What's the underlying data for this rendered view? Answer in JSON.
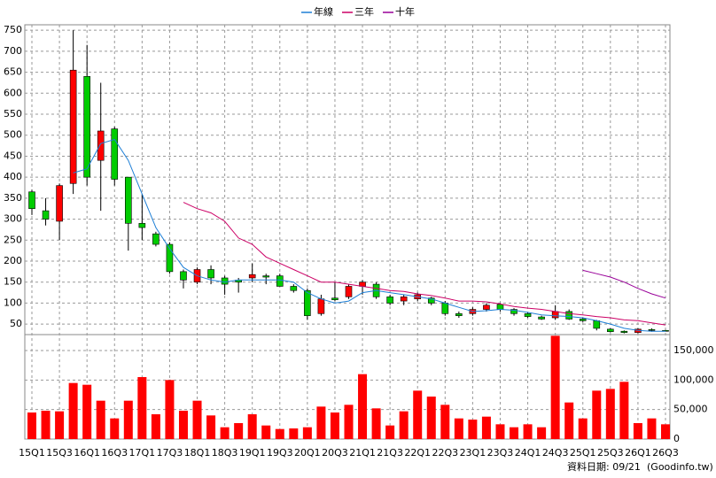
{
  "chart_data": {
    "type": "candlestick",
    "categories": [
      "15Q1",
      null,
      "15Q3",
      null,
      "16Q1",
      null,
      "16Q3",
      null,
      "17Q1",
      null,
      "17Q3",
      null,
      "18Q1",
      null,
      "18Q3",
      null,
      "19Q1",
      null,
      "19Q3",
      null,
      "20Q1",
      null,
      "20Q3",
      null,
      "21Q1",
      null,
      "21Q3",
      null,
      "22Q1",
      null,
      "22Q3",
      null,
      "23Q1",
      null,
      "23Q3",
      null,
      "24Q1",
      null,
      "24Q3",
      null,
      "25Q1",
      null,
      "25Q3",
      null,
      "26Q1",
      null,
      "26Q3"
    ],
    "ohlc": {
      "up_color": "#ff0000",
      "down_color": "#00cc00",
      "open": [
        365,
        320,
        295,
        385,
        640,
        440,
        515,
        400,
        290,
        265,
        240,
        175,
        150,
        180,
        160,
        155,
        160,
        165,
        165,
        140,
        130,
        75,
        112,
        115,
        140,
        145,
        115,
        105,
        110,
        112,
        100,
        75,
        75,
        85,
        97,
        85,
        75,
        67,
        65,
        80,
        62,
        58,
        38,
        33,
        30,
        37,
        35
      ],
      "high": [
        370,
        350,
        385,
        750,
        715,
        625,
        520,
        400,
        360,
        270,
        245,
        180,
        185,
        190,
        165,
        160,
        195,
        170,
        170,
        145,
        135,
        120,
        150,
        145,
        155,
        150,
        120,
        120,
        125,
        115,
        105,
        80,
        90,
        100,
        100,
        88,
        78,
        70,
        95,
        85,
        65,
        60,
        40,
        35,
        40,
        40,
        36
      ],
      "low": [
        310,
        285,
        250,
        360,
        380,
        320,
        380,
        225,
        250,
        235,
        170,
        135,
        145,
        145,
        120,
        125,
        150,
        145,
        140,
        125,
        60,
        70,
        105,
        110,
        120,
        110,
        95,
        95,
        105,
        95,
        70,
        65,
        70,
        80,
        80,
        70,
        65,
        60,
        60,
        60,
        55,
        35,
        30,
        28,
        28,
        32,
        33
      ],
      "close": [
        325,
        300,
        380,
        655,
        400,
        510,
        395,
        290,
        280,
        240,
        175,
        155,
        180,
        160,
        145,
        150,
        168,
        162,
        140,
        130,
        70,
        110,
        108,
        140,
        150,
        115,
        100,
        115,
        120,
        100,
        75,
        70,
        85,
        95,
        85,
        75,
        68,
        62,
        80,
        62,
        58,
        40,
        32,
        30,
        38,
        35,
        34
      ]
    },
    "volume": {
      "color": "#ff0000",
      "axis": "y2",
      "values": [
        45000,
        48000,
        47000,
        95000,
        92000,
        65000,
        35000,
        65000,
        105000,
        42000,
        100000,
        48000,
        65000,
        40000,
        20000,
        27000,
        42000,
        23000,
        17000,
        18000,
        20000,
        55000,
        45000,
        58000,
        110000,
        52000,
        23000,
        47000,
        82000,
        72000,
        58000,
        35000,
        33000,
        38000,
        25000,
        20000,
        25000,
        20000,
        175000,
        62000,
        35000,
        82000,
        85000,
        97000,
        27000,
        35000,
        25000
      ]
    },
    "series": [
      {
        "name": "年線",
        "color": "#1e7fd6",
        "values": [
          null,
          null,
          null,
          410,
          420,
          480,
          490,
          440,
          360,
          280,
          230,
          185,
          165,
          155,
          150,
          155,
          155,
          155,
          155,
          150,
          125,
          110,
          100,
          105,
          125,
          130,
          125,
          120,
          115,
          110,
          100,
          90,
          80,
          82,
          85,
          83,
          78,
          72,
          70,
          68,
          65,
          58,
          50,
          40,
          35,
          33,
          33
        ]
      },
      {
        "name": "三年",
        "color": "#cc0066",
        "values": [
          null,
          null,
          null,
          null,
          null,
          null,
          null,
          null,
          null,
          null,
          null,
          340,
          325,
          315,
          295,
          255,
          240,
          210,
          195,
          180,
          165,
          150,
          150,
          145,
          140,
          135,
          130,
          128,
          122,
          118,
          112,
          105,
          105,
          103,
          98,
          92,
          88,
          85,
          80,
          75,
          72,
          68,
          65,
          60,
          58,
          53,
          48
        ]
      },
      {
        "name": "十年",
        "color": "#990099",
        "values": [
          null,
          null,
          null,
          null,
          null,
          null,
          null,
          null,
          null,
          null,
          null,
          null,
          null,
          null,
          null,
          null,
          null,
          null,
          null,
          null,
          null,
          null,
          null,
          null,
          null,
          null,
          null,
          null,
          null,
          null,
          null,
          null,
          null,
          null,
          null,
          null,
          null,
          null,
          null,
          null,
          178,
          170,
          162,
          150,
          135,
          122,
          112
        ]
      }
    ],
    "ylim": [
      25,
      763
    ],
    "yticks": [
      50,
      100,
      150,
      200,
      250,
      300,
      350,
      400,
      450,
      500,
      550,
      600,
      650,
      700,
      750
    ],
    "y2lim": [
      0,
      177000
    ],
    "y2ticks": [
      0,
      {
        "value": 50000,
        "label": "50,000"
      },
      {
        "value": 100000,
        "label": "100,000"
      },
      {
        "value": 150000,
        "label": "150,000"
      }
    ],
    "grid": true,
    "legend": "top",
    "footer": "資料日期: 09/21",
    "source": "(Goodinfo.tw)"
  }
}
